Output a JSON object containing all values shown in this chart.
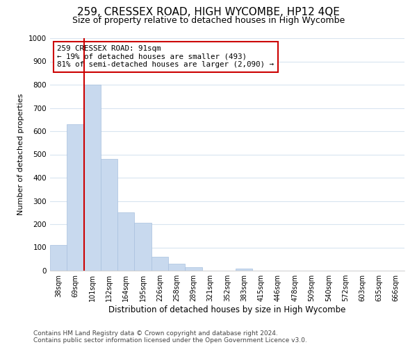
{
  "title": "259, CRESSEX ROAD, HIGH WYCOMBE, HP12 4QE",
  "subtitle": "Size of property relative to detached houses in High Wycombe",
  "xlabel": "Distribution of detached houses by size in High Wycombe",
  "ylabel": "Number of detached properties",
  "footer_line1": "Contains HM Land Registry data © Crown copyright and database right 2024.",
  "footer_line2": "Contains public sector information licensed under the Open Government Licence v3.0.",
  "bar_labels": [
    "38sqm",
    "69sqm",
    "101sqm",
    "132sqm",
    "164sqm",
    "195sqm",
    "226sqm",
    "258sqm",
    "289sqm",
    "321sqm",
    "352sqm",
    "383sqm",
    "415sqm",
    "446sqm",
    "478sqm",
    "509sqm",
    "540sqm",
    "572sqm",
    "603sqm",
    "635sqm",
    "666sqm"
  ],
  "bar_values": [
    110,
    630,
    800,
    480,
    250,
    205,
    60,
    30,
    15,
    0,
    0,
    10,
    0,
    0,
    0,
    0,
    0,
    0,
    0,
    0,
    0
  ],
  "bar_color": "#c8d9ee",
  "bar_edge_color": "#a8c0de",
  "highlight_index": 2,
  "highlight_line_color": "#cc0000",
  "annotation_line1": "259 CRESSEX ROAD: 91sqm",
  "annotation_line2": "← 19% of detached houses are smaller (493)",
  "annotation_line3": "81% of semi-detached houses are larger (2,090) →",
  "annotation_box_color": "#ffffff",
  "annotation_box_edge": "#cc0000",
  "ylim": [
    0,
    1000
  ],
  "yticks": [
    0,
    100,
    200,
    300,
    400,
    500,
    600,
    700,
    800,
    900,
    1000
  ],
  "grid_color": "#d8e4f0",
  "bg_color": "#ffffff",
  "title_fontsize": 11,
  "subtitle_fontsize": 9,
  "footer_fontsize": 6.5
}
